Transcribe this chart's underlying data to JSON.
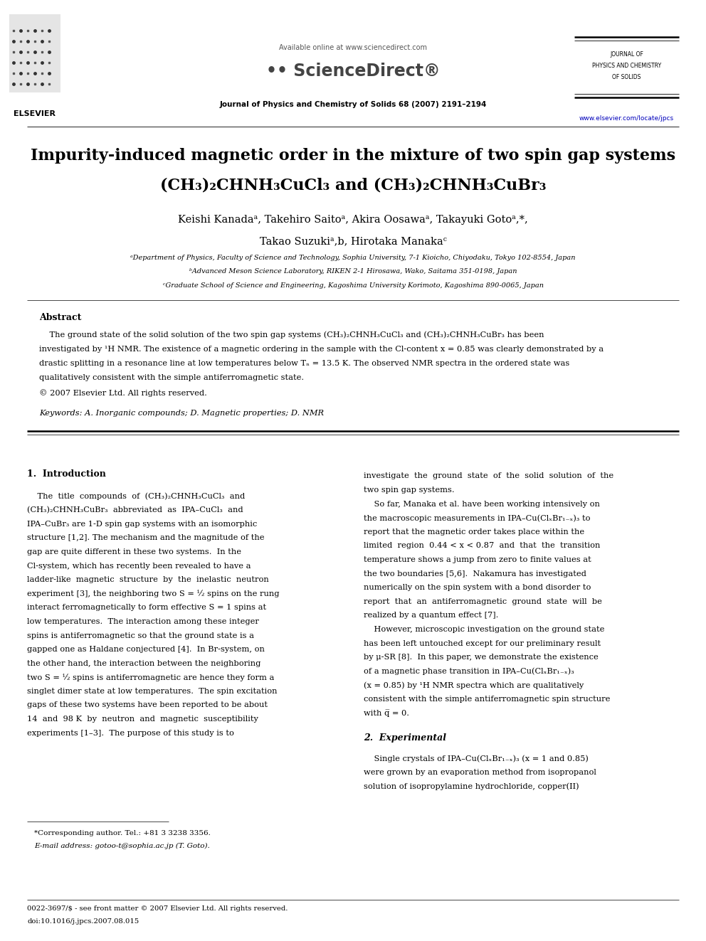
{
  "bg_color": "#ffffff",
  "page_width": 9.92,
  "page_height": 13.23,
  "available_online": "Available online at www.sciencedirect.com",
  "journal_name_line1": "JOURNAL OF",
  "journal_name_line2": "PHYSICS AND CHEMISTRY",
  "journal_name_line3": "OF SOLIDS",
  "journal_info": "Journal of Physics and Chemistry of Solids 68 (2007) 2191–2194",
  "elsevier_url": "www.elsevier.com/locate/jpcs",
  "elsevier_label": "ELSEVIER",
  "title_line1": "Impurity-induced magnetic order in the mixture of two spin gap systems",
  "title_line2": "(CH₃)₂CHNH₃CuCl₃ and (CH₃)₂CHNH₃CuBr₃",
  "authors_line1": "Keishi Kanadaᵃ, Takehiro Saitoᵃ, Akira Oosawaᵃ, Takayuki Gotoᵃ,*,",
  "authors_line2": "Takao Suzukiᵃ,b, Hirotaka Manakaᶜ",
  "affil_a": "ᵃDepartment of Physics, Faculty of Science and Technology, Sophia University, 7-1 Kioicho, Chiyodaku, Tokyo 102-8554, Japan",
  "affil_b": "ᵇAdvanced Meson Science Laboratory, RIKEN 2-1 Hirosawa, Wako, Saitama 351-0198, Japan",
  "affil_c": "ᶜGraduate School of Science and Engineering, Kagoshima University Korimoto, Kagoshima 890-0065, Japan",
  "abstract_label": "Abstract",
  "abstract_text_lines": [
    "    The ground state of the solid solution of the two spin gap systems (CH₃)₂CHNH₃CuCl₃ and (CH₃)₂CHNH₃CuBr₃ has been",
    "investigated by ¹H NMR. The existence of a magnetic ordering in the sample with the Cl-content x = 0.85 was clearly demonstrated by a",
    "drastic splitting in a resonance line at low temperatures below Tₙ = 13.5 K. The observed NMR spectra in the ordered state was",
    "qualitatively consistent with the simple antiferromagnetic state.",
    "© 2007 Elsevier Ltd. All rights reserved."
  ],
  "keywords_text": "Keywords: A. Inorganic compounds; D. Magnetic properties; D. NMR",
  "sec1_label": "1.  Introduction",
  "col1_lines": [
    "    The  title  compounds  of  (CH₃)₂CHNH₃CuCl₃  and",
    "(CH₃)₂CHNH₃CuBr₃  abbreviated  as  IPA–CuCl₃  and",
    "IPA–CuBr₃ are 1-D spin gap systems with an isomorphic",
    "structure [1,2]. The mechanism and the magnitude of the",
    "gap are quite different in these two systems.  In the",
    "Cl-system, which has recently been revealed to have a",
    "ladder-like  magnetic  structure  by  the  inelastic  neutron",
    "experiment [3], the neighboring two S = ½ spins on the rung",
    "interact ferromagnetically to form effective S = 1 spins at",
    "low temperatures.  The interaction among these integer",
    "spins is antiferromagnetic so that the ground state is a",
    "gapped one as Haldane conjectured [4].  In Br-system, on",
    "the other hand, the interaction between the neighboring",
    "two S = ½ spins is antiferromagnetic are hence they form a",
    "singlet dimer state at low temperatures.  The spin excitation",
    "gaps of these two systems have been reported to be about",
    "14  and  98 K  by  neutron  and  magnetic  susceptibility",
    "experiments [1–3].  The purpose of this study is to"
  ],
  "col2_lines_p1": [
    "investigate  the  ground  state  of  the  solid  solution  of  the",
    "two spin gap systems.",
    "    So far, Manaka et al. have been working intensively on",
    "the macroscopic measurements in IPA–Cu(ClₓBr₁₋ₓ)₃ to",
    "report that the magnetic order takes place within the",
    "limited  region  0.44 < x < 0.87  and  that  the  transition",
    "temperature shows a jump from zero to finite values at",
    "the two boundaries [5,6].  Nakamura has investigated",
    "numerically on the spin system with a bond disorder to",
    "report  that  an  antiferromagnetic  ground  state  will  be",
    "realized by a quantum effect [7].",
    "    However, microscopic investigation on the ground state",
    "has been left untouched except for our preliminary result",
    "by μ-SR [8].  In this paper, we demonstrate the existence",
    "of a magnetic phase transition in IPA–Cu(ClₓBr₁₋ₓ)₃",
    "(x = 0.85) by ¹H NMR spectra which are qualitatively",
    "consistent with the simple antiferromagnetic spin structure",
    "with q̅ = 0."
  ],
  "sec2_label": "2.  Experimental",
  "col2_lines_p2": [
    "    Single crystals of IPA–Cu(ClₓBr₁₋ₓ)₃ (x = 1 and 0.85)",
    "were grown by an evaporation method from isopropanol",
    "solution of isopropylamine hydrochloride, copper(II)"
  ],
  "footnote_line1": "*Corresponding author. Tel.: +81 3 3238 3356.",
  "footnote_line2": "E-mail address: gotoo-t@sophia.ac.jp (T. Goto).",
  "bottom_line1": "0022-3697/$ - see front matter © 2007 Elsevier Ltd. All rights reserved.",
  "bottom_line2": "doi:10.1016/j.jpcs.2007.08.015"
}
